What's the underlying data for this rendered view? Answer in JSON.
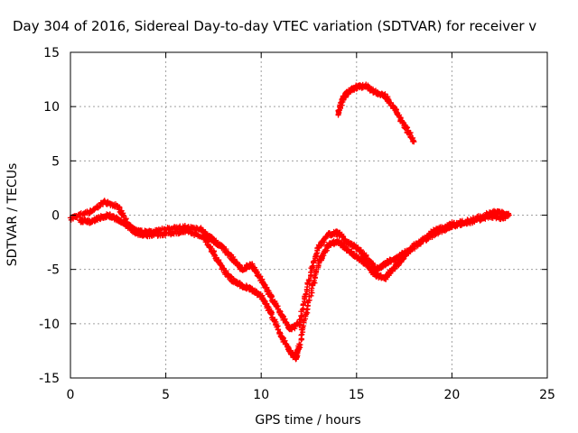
{
  "chart_data": {
    "type": "scatter",
    "title": "Day 304 of 2016, Sidereal Day-to-day VTEC variation (SDTVAR) for receiver v",
    "xlabel": "GPS time / hours",
    "ylabel": "SDTVAR / TECUs",
    "xlim": [
      0,
      25
    ],
    "ylim": [
      -15,
      15
    ],
    "xticks": [
      0,
      5,
      10,
      15,
      20,
      25
    ],
    "yticks": [
      -15,
      -10,
      -5,
      0,
      5,
      10,
      15
    ],
    "grid": true,
    "series": [
      {
        "name": "upper-band",
        "color": "#ff0000",
        "x": [
          0.0,
          1.0,
          1.8,
          2.5,
          3.0,
          3.5,
          4.0,
          5.0,
          6.0,
          6.8,
          7.3,
          7.6,
          8.0,
          8.5,
          9.0,
          9.5,
          10.0,
          10.5,
          11.0,
          11.5,
          12.0,
          12.5,
          13.0,
          13.5,
          14.0,
          14.5,
          15.0,
          15.5,
          16.0,
          16.5,
          17.0,
          18.0,
          19.0,
          20.0,
          21.0,
          22.0,
          22.5,
          23.0
        ],
        "y": [
          -0.3,
          0.3,
          1.2,
          0.8,
          -0.8,
          -1.5,
          -1.6,
          -1.3,
          -1.1,
          -1.3,
          -2.0,
          -2.5,
          -3.0,
          -4.0,
          -5.0,
          -4.5,
          -6.0,
          -7.5,
          -9.0,
          -10.5,
          -10.0,
          -6.0,
          -3.0,
          -1.8,
          -1.6,
          -2.5,
          -3.0,
          -3.8,
          -5.0,
          -4.5,
          -4.0,
          -3.0,
          -1.5,
          -0.8,
          -0.5,
          0.2,
          0.3,
          0.0
        ]
      },
      {
        "name": "lower-band",
        "color": "#ff0000",
        "x": [
          0.5,
          1.0,
          1.5,
          2.0,
          2.5,
          3.0,
          3.5,
          4.0,
          5.0,
          6.0,
          7.0,
          7.5,
          8.0,
          8.5,
          9.0,
          9.5,
          10.0,
          10.5,
          11.0,
          11.5,
          11.8,
          12.0,
          12.5,
          13.0,
          13.5,
          14.0,
          14.5,
          15.0,
          15.5,
          16.0,
          16.5,
          17.0,
          17.5,
          18.0,
          19.0,
          20.0,
          21.0,
          22.0,
          22.8
        ],
        "y": [
          -0.5,
          -0.6,
          -0.3,
          0.0,
          -0.4,
          -1.0,
          -1.7,
          -1.9,
          -1.7,
          -1.5,
          -2.0,
          -3.5,
          -5.0,
          -6.0,
          -6.5,
          -6.8,
          -7.5,
          -9.0,
          -11.0,
          -12.5,
          -13.2,
          -12.0,
          -8.0,
          -4.5,
          -2.8,
          -2.4,
          -3.2,
          -3.8,
          -4.5,
          -5.5,
          -5.8,
          -4.8,
          -3.8,
          -2.8,
          -1.8,
          -1.0,
          -0.6,
          -0.1,
          -0.3
        ]
      },
      {
        "name": "arc-segment",
        "color": "#ff0000",
        "x": [
          14.0,
          14.3,
          14.6,
          15.0,
          15.5,
          16.0,
          16.5,
          17.0,
          17.5,
          18.0
        ],
        "y": [
          9.3,
          10.8,
          11.4,
          11.8,
          11.9,
          11.3,
          11.0,
          9.8,
          8.3,
          6.8
        ]
      }
    ]
  }
}
